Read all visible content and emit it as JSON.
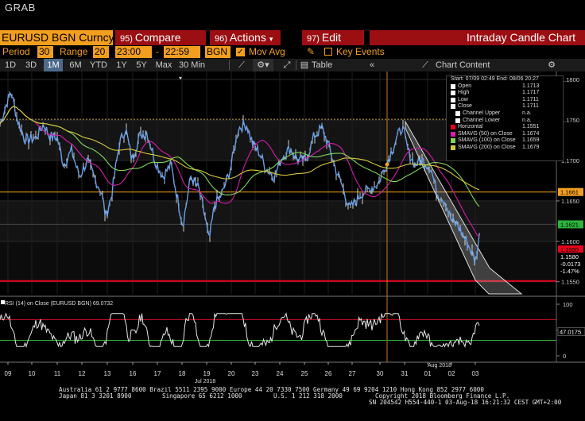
{
  "app": {
    "grab_label": "GRAB"
  },
  "toolbar": {
    "security": "EURUSD BGN Curncy",
    "compare": {
      "num": "95)",
      "label": "Compare"
    },
    "actions": {
      "num": "96)",
      "label": "Actions"
    },
    "edit": {
      "num": "97)",
      "label": "Edit"
    },
    "title": "Intraday Candle Chart"
  },
  "settings": {
    "period_label": "Period",
    "period_value": "30",
    "range_label": "Range",
    "range_value": "20",
    "time_from": "23:00",
    "dash": "-",
    "time_to": "22:59",
    "source": "BGN",
    "mov_avg_label": "Mov Avg",
    "key_events_label": "Key Events"
  },
  "ranges": [
    "1D",
    "3D",
    "1M",
    "6M",
    "YTD",
    "1Y",
    "5Y",
    "Max"
  ],
  "active_range": "1M",
  "interval": "30 Min",
  "table_label": "Table",
  "chart_content_label": "Chart Content",
  "legend": {
    "header": "Start: 07/09 02:49 End: 08/06 20:27",
    "rows": [
      {
        "label": "Open",
        "value": "1.1713",
        "color": "#ffffff"
      },
      {
        "label": "High",
        "value": "1.1717",
        "color": "#ffffff"
      },
      {
        "label": "Low",
        "value": "1.1711",
        "color": "#ffffff"
      },
      {
        "label": "Close",
        "value": "1.1711",
        "color": "#ffffff"
      },
      {
        "label": "Channel Upper",
        "value": "n.a.",
        "color": "#ffffff"
      },
      {
        "label": "Channel Lower",
        "value": "n.a.",
        "color": "#ffffff"
      },
      {
        "label": "Horizontal",
        "value": "1.1551",
        "color": "#e8001c"
      },
      {
        "label": "SMAVG (50) on Close",
        "value": "1.1674",
        "color": "#d61cad"
      },
      {
        "label": "SMAVG (100) on Close",
        "value": "1.1659",
        "color": "#7ed957"
      },
      {
        "label": "SMAVG (200) on Close",
        "value": "1.1679",
        "color": "#d6c83a"
      }
    ]
  },
  "chart_data": {
    "type": "line",
    "series": [
      {
        "name": "Close",
        "color": "#6aa0e6"
      },
      {
        "name": "SMAVG (50) on Close",
        "color": "#d61cad"
      },
      {
        "name": "SMAVG (100) on Close",
        "color": "#7ed957"
      },
      {
        "name": "SMAVG (200) on Close",
        "color": "#d6c83a"
      }
    ],
    "x_ticks": [
      "09",
      "10",
      "11",
      "12",
      "13",
      "16",
      "17",
      "18",
      "19",
      "20",
      "23",
      "24",
      "25",
      "26",
      "27",
      "30",
      "31",
      "01",
      "02",
      "03"
    ],
    "x_period_labels": [
      "Jul 2018",
      "Aug 2018"
    ],
    "y_ticks": [
      "1.1800",
      "1.1750",
      "1.1700",
      "1.1650",
      "1.1600",
      "1.1550"
    ],
    "ylim": [
      1.1535,
      1.181
    ],
    "y_tags": [
      {
        "value": "1.1661",
        "color": "#f29e1f"
      },
      {
        "value": "1.1621",
        "color": "#2bb33a"
      },
      {
        "value": "1.1590",
        "color": "#e8001c"
      },
      {
        "value": "1.1580",
        "color": "#000000",
        "text": "#ffffff"
      },
      {
        "value": "-0.0173",
        "color": "#000000",
        "text": "#ffffff"
      },
      {
        "value": "-1.47%",
        "color": "#000000",
        "text": "#ffffff"
      }
    ],
    "horizontal_line": 1.1551,
    "rsi": {
      "label": "RSI (14) on Close (EURUSD BGN) 69.0732",
      "y_ticks": [
        "100",
        "50",
        "0"
      ],
      "upper": 70,
      "lower": 30,
      "last_tag": "47.0175"
    }
  },
  "footer": {
    "line1": "Australia 61 2 9777 8600 Brazil 5511 2395 9000 Europe 44 20 7330 7500 Germany 49 69 9204 1210 Hong Kong 852 2977 6000",
    "line2a": "Japan 81 3 3201 8900",
    "line2b": "Singapore 65 6212 1000",
    "line2c": "U.S. 1 212 318 2000",
    "line2d": "Copyright 2018 Bloomberg Finance L.P.",
    "line3": "SN 204542 H554-440-1 03-Aug-18 16:21:32 CEST GMT+2:00"
  }
}
